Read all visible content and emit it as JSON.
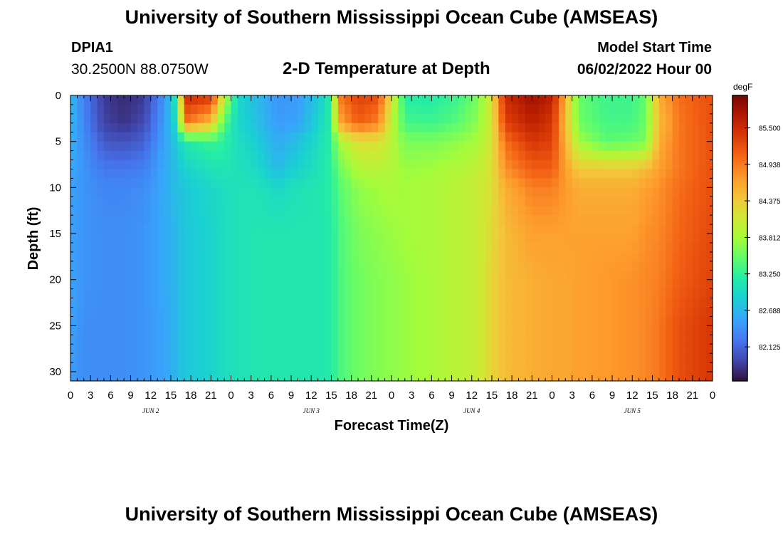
{
  "header": {
    "title": "University of Southern Mississippi Ocean Cube (AMSEAS)",
    "station_id": "DPIA1",
    "station_coords": "30.2500N  88.0750W",
    "model_start_label": "Model Start Time",
    "model_start_value": "06/02/2022 Hour 00"
  },
  "footer": {
    "title": "University of Southern Mississippi Ocean Cube (AMSEAS)"
  },
  "chart_data": {
    "type": "heatmap",
    "title": "2-D Temperature at Depth",
    "xlabel": "Forecast Time(Z)",
    "ylabel": "Depth (ft)",
    "x_hours_range": [
      0,
      96
    ],
    "x_tick_step_hours": 3,
    "x_tick_labels": [
      "0",
      "3",
      "6",
      "9",
      "12",
      "15",
      "18",
      "21",
      "0",
      "3",
      "6",
      "9",
      "12",
      "15",
      "18",
      "21",
      "0",
      "3",
      "6",
      "9",
      "12",
      "15",
      "18",
      "21",
      "0",
      "3",
      "6",
      "9",
      "12",
      "15",
      "18",
      "21",
      "0"
    ],
    "date_labels": [
      {
        "hour": 12,
        "label": "JUN 2"
      },
      {
        "hour": 36,
        "label": "JUN 3"
      },
      {
        "hour": 60,
        "label": "JUN 4"
      },
      {
        "hour": 84,
        "label": "JUN 5"
      }
    ],
    "ylim": [
      0,
      31
    ],
    "y_ticks": [
      0,
      5,
      10,
      15,
      20,
      25,
      30
    ],
    "y_tick_labels": [
      "0",
      "5",
      "10",
      "15",
      "20",
      "25",
      "30"
    ],
    "colorbar": {
      "unit": "degF",
      "range": [
        81.6,
        86.0
      ],
      "ticks": [
        82.125,
        82.688,
        83.25,
        83.812,
        84.375,
        84.938,
        85.5
      ],
      "tick_labels": [
        "82.125",
        "82.688",
        "83.250",
        "83.812",
        "84.375",
        "84.938",
        "85.500"
      ]
    },
    "temperature_profiles_degF": {
      "depth_levels_ft": [
        0,
        3,
        5,
        8,
        10,
        15,
        20,
        25,
        31
      ],
      "columns": [
        {
          "hour": 0,
          "values": [
            82.75,
            82.7,
            82.65,
            82.6,
            82.55,
            82.55,
            82.55,
            82.55,
            82.5
          ]
        },
        {
          "hour": 2,
          "values": [
            82.3,
            82.35,
            82.4,
            82.45,
            82.45,
            82.45,
            82.45,
            82.4,
            82.4
          ]
        },
        {
          "hour": 5,
          "values": [
            81.85,
            81.9,
            82.05,
            82.25,
            82.35,
            82.4,
            82.4,
            82.4,
            82.4
          ]
        },
        {
          "hour": 8,
          "values": [
            81.75,
            81.8,
            82.0,
            82.25,
            82.35,
            82.4,
            82.4,
            82.4,
            82.4
          ]
        },
        {
          "hour": 11,
          "values": [
            81.85,
            81.95,
            82.1,
            82.3,
            82.4,
            82.45,
            82.45,
            82.45,
            82.45
          ]
        },
        {
          "hour": 14,
          "values": [
            82.45,
            82.5,
            82.55,
            82.6,
            82.6,
            82.6,
            82.6,
            82.55,
            82.55
          ]
        },
        {
          "hour": 16,
          "values": [
            83.2,
            83.0,
            82.85,
            82.75,
            82.75,
            82.7,
            82.7,
            82.7,
            82.7
          ]
        },
        {
          "hour": 17,
          "values": [
            85.5,
            85.0,
            83.1,
            82.9,
            82.8,
            82.8,
            82.8,
            82.8,
            82.8
          ]
        },
        {
          "hour": 21,
          "values": [
            85.4,
            84.5,
            83.3,
            83.05,
            82.95,
            82.9,
            82.9,
            82.9,
            82.9
          ]
        },
        {
          "hour": 23,
          "values": [
            84.0,
            83.4,
            83.2,
            83.1,
            83.0,
            83.0,
            83.0,
            83.0,
            83.0
          ]
        },
        {
          "hour": 25,
          "values": [
            82.95,
            82.95,
            83.0,
            83.05,
            83.05,
            83.05,
            83.05,
            83.05,
            83.05
          ]
        },
        {
          "hour": 28,
          "values": [
            82.7,
            82.75,
            82.85,
            82.95,
            83.05,
            83.1,
            83.1,
            83.1,
            83.1
          ]
        },
        {
          "hour": 31,
          "values": [
            82.45,
            82.5,
            82.6,
            82.7,
            82.95,
            83.1,
            83.1,
            83.1,
            83.1
          ]
        },
        {
          "hour": 34,
          "values": [
            82.5,
            82.55,
            82.75,
            82.9,
            83.05,
            83.1,
            83.1,
            83.1,
            83.1
          ]
        },
        {
          "hour": 37,
          "values": [
            82.8,
            82.9,
            83.0,
            83.05,
            83.1,
            83.1,
            83.1,
            83.1,
            83.1
          ]
        },
        {
          "hour": 39,
          "values": [
            83.2,
            83.2,
            83.2,
            83.2,
            83.2,
            83.15,
            83.15,
            83.15,
            83.15
          ]
        },
        {
          "hour": 40,
          "values": [
            84.9,
            84.6,
            83.8,
            83.5,
            83.4,
            83.35,
            83.35,
            83.35,
            83.35
          ]
        },
        {
          "hour": 43,
          "values": [
            85.3,
            85.1,
            84.2,
            83.9,
            83.7,
            83.6,
            83.55,
            83.55,
            83.55
          ]
        },
        {
          "hour": 46,
          "values": [
            85.2,
            84.9,
            84.2,
            83.95,
            83.8,
            83.7,
            83.65,
            83.65,
            83.65
          ]
        },
        {
          "hour": 48,
          "values": [
            84.2,
            84.0,
            83.95,
            83.9,
            83.85,
            83.75,
            83.7,
            83.7,
            83.7
          ]
        },
        {
          "hour": 50,
          "values": [
            83.15,
            83.35,
            83.6,
            83.75,
            83.8,
            83.8,
            83.75,
            83.75,
            83.75
          ]
        },
        {
          "hour": 54,
          "values": [
            83.15,
            83.3,
            83.6,
            83.8,
            83.85,
            83.85,
            83.85,
            83.85,
            83.85
          ]
        },
        {
          "hour": 58,
          "values": [
            83.3,
            83.45,
            83.7,
            83.9,
            83.95,
            83.95,
            83.95,
            83.95,
            83.95
          ]
        },
        {
          "hour": 61,
          "values": [
            83.6,
            83.7,
            83.85,
            84.0,
            84.05,
            84.05,
            84.05,
            84.05,
            84.05
          ]
        },
        {
          "hour": 63,
          "values": [
            84.2,
            84.15,
            84.15,
            84.2,
            84.2,
            84.25,
            84.3,
            84.3,
            84.3
          ]
        },
        {
          "hour": 65,
          "values": [
            85.5,
            85.3,
            85.0,
            84.8,
            84.6,
            84.5,
            84.5,
            84.5,
            84.5
          ]
        },
        {
          "hour": 69,
          "values": [
            85.8,
            85.6,
            85.4,
            85.1,
            84.9,
            84.7,
            84.6,
            84.6,
            84.6
          ]
        },
        {
          "hour": 72,
          "values": [
            85.6,
            85.4,
            85.3,
            85.1,
            84.9,
            84.7,
            84.65,
            84.65,
            84.65
          ]
        },
        {
          "hour": 74,
          "values": [
            84.6,
            84.5,
            84.6,
            84.7,
            84.75,
            84.7,
            84.65,
            84.65,
            84.65
          ]
        },
        {
          "hour": 76,
          "values": [
            83.5,
            83.55,
            83.8,
            84.4,
            84.6,
            84.7,
            84.7,
            84.7,
            84.7
          ]
        },
        {
          "hour": 80,
          "values": [
            83.3,
            83.35,
            83.45,
            84.4,
            84.6,
            84.7,
            84.75,
            84.75,
            84.75
          ]
        },
        {
          "hour": 84,
          "values": [
            83.3,
            83.35,
            83.5,
            84.4,
            84.6,
            84.7,
            84.8,
            84.8,
            84.8
          ]
        },
        {
          "hour": 86,
          "values": [
            83.5,
            83.55,
            83.6,
            84.5,
            84.7,
            84.8,
            84.85,
            84.85,
            84.85
          ]
        },
        {
          "hour": 88,
          "values": [
            84.6,
            84.5,
            84.6,
            84.7,
            84.8,
            84.85,
            84.9,
            84.95,
            84.95
          ]
        },
        {
          "hour": 91,
          "values": [
            85.0,
            84.95,
            84.95,
            84.95,
            85.0,
            85.05,
            85.1,
            85.2,
            85.2
          ]
        },
        {
          "hour": 96,
          "values": [
            85.2,
            85.2,
            85.2,
            85.2,
            85.2,
            85.25,
            85.3,
            85.4,
            85.4
          ]
        }
      ]
    }
  }
}
